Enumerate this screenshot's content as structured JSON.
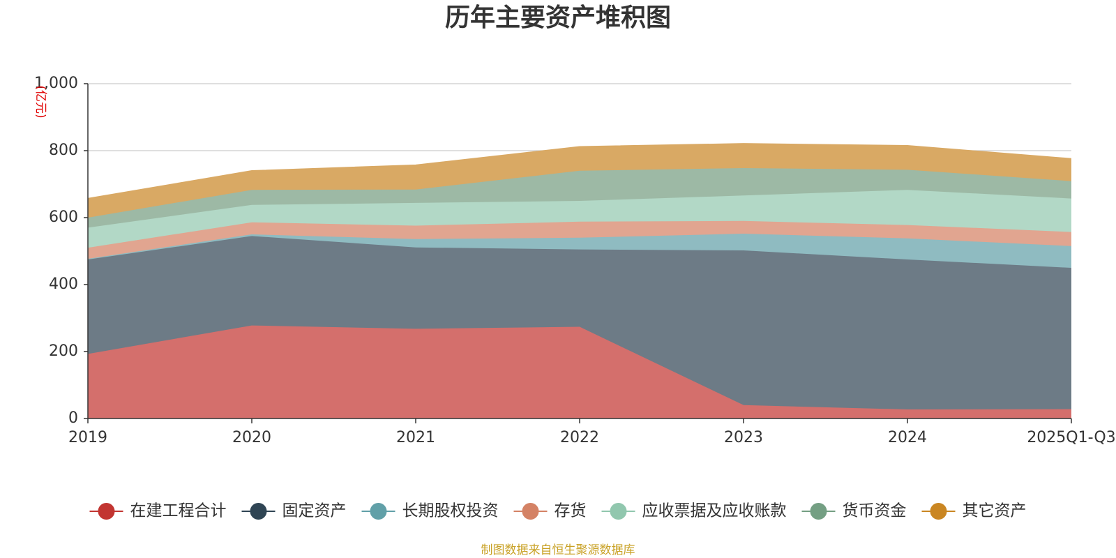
{
  "chart_data": {
    "type": "area",
    "stacked": true,
    "title": "历年主要资产堆积图",
    "ylabel": "(亿元)",
    "xlabel": "",
    "ylim": [
      0,
      1000
    ],
    "yticks": [
      0,
      200,
      400,
      600,
      800,
      1000
    ],
    "ytick_labels": [
      "0",
      "200",
      "400",
      "600",
      "800",
      "1,000"
    ],
    "grid": true,
    "legend_position": "bottom",
    "categories": [
      "2019",
      "2020",
      "2021",
      "2022",
      "2023",
      "2024",
      "2025Q1-Q3"
    ],
    "series": [
      {
        "name": "在建工程合计",
        "color": "#c23531",
        "area_color": "#d46f6c",
        "values": [
          193,
          278,
          268,
          274,
          40,
          27,
          28
        ]
      },
      {
        "name": "固定资产",
        "color": "#2f4554",
        "area_color": "#6d7b86",
        "values": [
          282,
          267,
          243,
          231,
          462,
          448,
          422
        ]
      },
      {
        "name": "长期股权投资",
        "color": "#61a0a8",
        "area_color": "#8fbbc1",
        "values": [
          2,
          5,
          25,
          35,
          50,
          63,
          65
        ]
      },
      {
        "name": "存货",
        "color": "#d48265",
        "area_color": "#e1a590",
        "values": [
          33,
          36,
          40,
          48,
          38,
          40,
          42
        ]
      },
      {
        "name": "应收票据及应收账款",
        "color": "#91c7ae",
        "area_color": "#b2d8c6",
        "values": [
          60,
          52,
          68,
          62,
          76,
          105,
          100
        ]
      },
      {
        "name": "货币资金",
        "color": "#749f83",
        "area_color": "#9db9a5",
        "values": [
          30,
          45,
          40,
          90,
          82,
          60,
          52
        ]
      },
      {
        "name": "其它资产",
        "color": "#ca8622",
        "area_color": "#d9a964",
        "values": [
          57,
          57,
          73,
          72,
          73,
          72,
          67
        ]
      }
    ]
  },
  "source_note": "制图数据来自恒生聚源数据库"
}
